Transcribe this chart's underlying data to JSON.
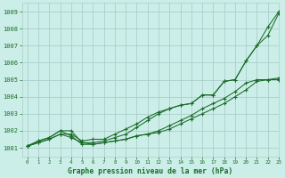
{
  "title": "Graphe pression niveau de la mer (hPa)",
  "background_color": "#cceee8",
  "grid_color": "#aacfcb",
  "line_color": "#1a6b2a",
  "xlim": [
    -0.5,
    23
  ],
  "ylim": [
    1000.5,
    1009.5
  ],
  "x": [
    0,
    1,
    2,
    3,
    4,
    5,
    6,
    7,
    8,
    9,
    10,
    11,
    12,
    13,
    14,
    15,
    16,
    17,
    18,
    19,
    20,
    21,
    22,
    23
  ],
  "line1": [
    1001.1,
    1001.3,
    1001.5,
    1001.8,
    1001.8,
    1001.4,
    1001.5,
    1001.5,
    1001.8,
    1002.1,
    1002.4,
    1002.8,
    1003.1,
    1003.3,
    1003.5,
    1003.6,
    1004.1,
    1004.1,
    1004.9,
    1005.0,
    1006.1,
    1007.0,
    1008.1,
    1009.0
  ],
  "line2": [
    1001.1,
    1001.3,
    1001.5,
    1001.8,
    1001.6,
    1001.3,
    1001.3,
    1001.4,
    1001.6,
    1001.8,
    1002.2,
    1002.6,
    1003.0,
    1003.3,
    1003.5,
    1003.6,
    1004.1,
    1004.1,
    1004.9,
    1005.0,
    1006.1,
    1007.0,
    1007.6,
    1008.9
  ],
  "line3": [
    1001.1,
    1001.4,
    1001.6,
    1002.0,
    1002.0,
    1001.3,
    1001.2,
    1001.3,
    1001.4,
    1001.5,
    1001.7,
    1001.8,
    1002.0,
    1002.3,
    1002.6,
    1002.9,
    1003.3,
    1003.6,
    1003.9,
    1004.3,
    1004.8,
    1005.0,
    1005.0,
    1005.1
  ],
  "line4": [
    1001.1,
    1001.4,
    1001.6,
    1002.0,
    1001.7,
    1001.2,
    1001.2,
    1001.3,
    1001.4,
    1001.5,
    1001.7,
    1001.8,
    1001.9,
    1002.1,
    1002.4,
    1002.7,
    1003.0,
    1003.3,
    1003.6,
    1004.0,
    1004.4,
    1004.9,
    1005.0,
    1005.0
  ],
  "yticks": [
    1001,
    1002,
    1003,
    1004,
    1005,
    1006,
    1007,
    1008,
    1009
  ],
  "xticks": [
    0,
    1,
    2,
    3,
    4,
    5,
    6,
    7,
    8,
    9,
    10,
    11,
    12,
    13,
    14,
    15,
    16,
    17,
    18,
    19,
    20,
    21,
    22,
    23
  ]
}
